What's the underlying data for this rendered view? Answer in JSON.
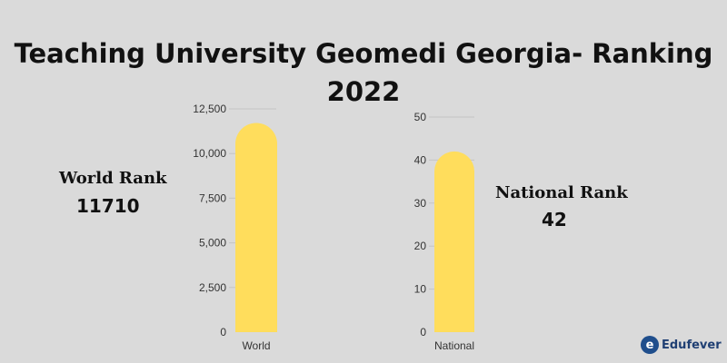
{
  "title": {
    "line1": "Teaching University Geomedi Georgia- Ranking",
    "line2": "2022"
  },
  "world_rank": {
    "label": "World Rank",
    "value": "11710"
  },
  "national_rank": {
    "label": "National Rank",
    "value": "42"
  },
  "logo": {
    "mark": "e",
    "text": "Edufever"
  },
  "colors": {
    "bar": "#ffdd5c",
    "background": "#dadada",
    "grid": "#c4c4c4"
  },
  "chart_data": [
    {
      "type": "bar",
      "categories": [
        "World"
      ],
      "values": [
        11710
      ],
      "ylim": [
        0,
        12500
      ],
      "yticks": [
        "0",
        "2,500",
        "5,000",
        "7,500",
        "10,000",
        "12,500"
      ],
      "grid": true
    },
    {
      "type": "bar",
      "categories": [
        "National"
      ],
      "values": [
        42
      ],
      "ylim": [
        0,
        50
      ],
      "yticks": [
        "0",
        "10",
        "20",
        "30",
        "40",
        "50"
      ],
      "grid": true
    }
  ]
}
